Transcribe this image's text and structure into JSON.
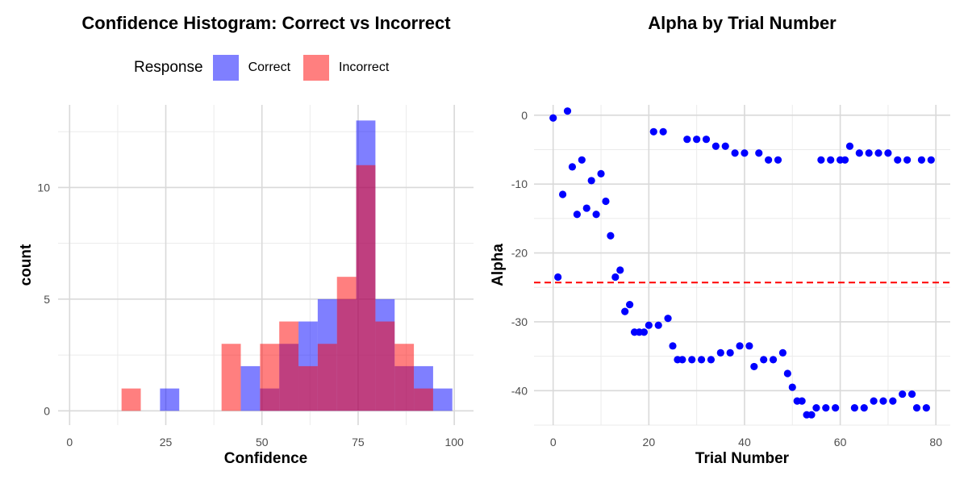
{
  "chart_data": [
    {
      "type": "bar",
      "title": "Confidence Histogram: Correct vs Incorrect",
      "xlabel": "Confidence",
      "ylabel": "count",
      "xlim": [
        -3,
        105
      ],
      "ylim": [
        -0.64,
        13.7
      ],
      "x_ticks": [
        0,
        25,
        50,
        75,
        100
      ],
      "y_ticks": [
        0,
        5,
        10
      ],
      "grid": true,
      "legend": {
        "title": "Response",
        "placement": "top",
        "entries": [
          "Correct",
          "Incorrect"
        ]
      },
      "bin_width": 5,
      "series": [
        {
          "name": "Correct",
          "color": "#0000FF",
          "opacity": 0.5,
          "bins": [
            {
              "x": 26,
              "count": 1
            },
            {
              "x": 47,
              "count": 2
            },
            {
              "x": 52,
              "count": 1
            },
            {
              "x": 57,
              "count": 3
            },
            {
              "x": 62,
              "count": 4
            },
            {
              "x": 67,
              "count": 5
            },
            {
              "x": 72,
              "count": 5
            },
            {
              "x": 77,
              "count": 13
            },
            {
              "x": 82,
              "count": 5
            },
            {
              "x": 87,
              "count": 2
            },
            {
              "x": 92,
              "count": 2
            },
            {
              "x": 97,
              "count": 1
            }
          ]
        },
        {
          "name": "Incorrect",
          "color": "#FF0000",
          "opacity": 0.5,
          "bins": [
            {
              "x": 16,
              "count": 1
            },
            {
              "x": 42,
              "count": 3
            },
            {
              "x": 52,
              "count": 3
            },
            {
              "x": 57,
              "count": 4
            },
            {
              "x": 62,
              "count": 2
            },
            {
              "x": 67,
              "count": 3
            },
            {
              "x": 72,
              "count": 6
            },
            {
              "x": 77,
              "count": 11
            },
            {
              "x": 82,
              "count": 4
            },
            {
              "x": 87,
              "count": 3
            },
            {
              "x": 92,
              "count": 1
            }
          ]
        }
      ]
    },
    {
      "type": "scatter",
      "title": "Alpha by Trial Number",
      "xlabel": "Trial Number",
      "ylabel": "Alpha",
      "xlim": [
        -4,
        83
      ],
      "ylim": [
        -45,
        1.5
      ],
      "x_ticks": [
        0,
        20,
        40,
        60,
        80
      ],
      "y_ticks": [
        0,
        -10,
        -20,
        -30,
        -40
      ],
      "grid": true,
      "point_color": "#0000FF",
      "reference_line": {
        "y": -24.3,
        "color": "#FF0000",
        "style": "dashed"
      },
      "x": [
        0,
        1,
        2,
        3,
        4,
        5,
        6,
        7,
        8,
        9,
        10,
        11,
        12,
        13,
        14,
        15,
        16,
        17,
        18,
        19,
        20,
        21,
        22,
        23,
        24,
        25,
        26,
        27,
        28,
        29,
        30,
        31,
        32,
        33,
        34,
        35,
        36,
        37,
        38,
        39,
        40,
        41,
        42,
        43,
        44,
        45,
        46,
        47,
        48,
        49,
        50,
        51,
        52,
        53,
        54,
        55,
        56,
        57,
        58,
        59,
        60,
        61,
        62,
        63,
        64,
        65,
        66,
        67,
        68,
        69,
        70,
        71,
        72,
        73,
        74,
        75,
        76,
        77,
        78,
        79
      ],
      "y": [
        -0.4,
        -23.5,
        -11.5,
        0.6,
        -7.5,
        -14.4,
        -6.5,
        -13.5,
        -9.5,
        -14.4,
        -8.5,
        -12.5,
        -17.5,
        -23.5,
        -22.5,
        -28.5,
        -27.5,
        -31.5,
        -31.5,
        -31.5,
        -30.5,
        -2.4,
        -30.5,
        -2.4,
        -29.5,
        -33.5,
        -35.5,
        -35.5,
        -3.5,
        -35.5,
        -3.5,
        -35.5,
        -3.5,
        -35.5,
        -4.5,
        -34.5,
        -4.5,
        -34.5,
        -5.5,
        -33.5,
        -5.5,
        -33.5,
        -36.5,
        -5.5,
        -35.5,
        -6.5,
        -35.5,
        -6.5,
        -34.5,
        -37.5,
        -39.5,
        -41.5,
        -41.5,
        -43.5,
        -43.5,
        -42.5,
        -6.5,
        -42.5,
        -6.5,
        -42.5,
        -6.5,
        -6.5,
        -4.5,
        -42.5,
        -5.5,
        -42.5,
        -5.5,
        -41.5,
        -5.5,
        -41.5,
        -5.5,
        -41.5,
        -6.5,
        -40.5,
        -6.5,
        -40.5,
        -42.5,
        -6.5,
        -42.5,
        -6.5
      ]
    }
  ]
}
